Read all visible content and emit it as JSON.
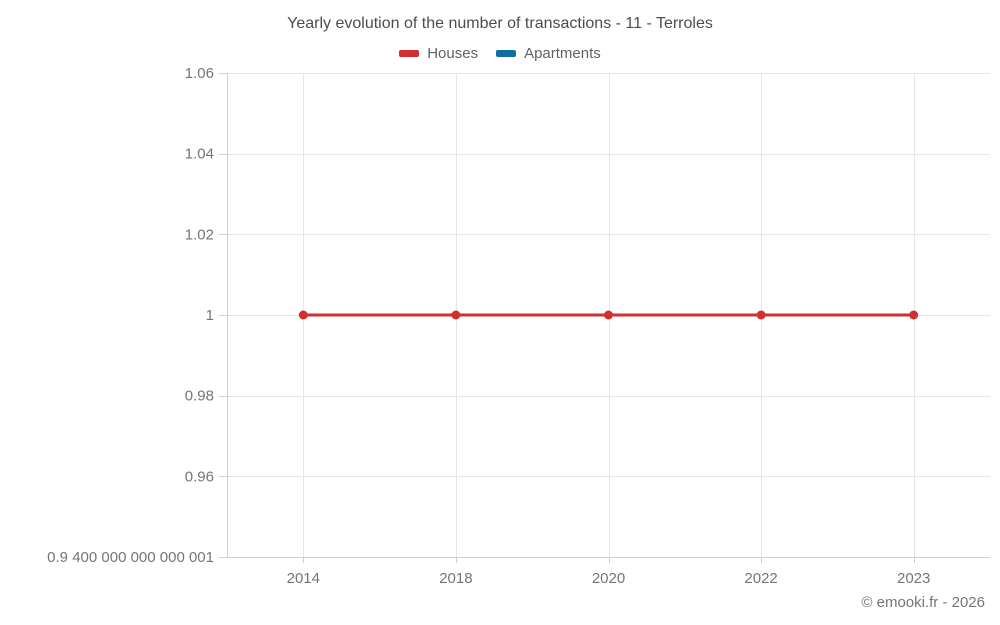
{
  "chart_data": {
    "type": "line",
    "title": "Yearly evolution of the number of transactions - 11 - Terroles",
    "categories": [
      "2014",
      "2018",
      "2020",
      "2022",
      "2023"
    ],
    "series": [
      {
        "name": "Houses",
        "color": "#d32f2f",
        "values": [
          1,
          1,
          1,
          1,
          1
        ]
      },
      {
        "name": "Apartments",
        "color": "#0f6fa3",
        "values": [
          null,
          null,
          null,
          null,
          null
        ]
      }
    ],
    "ylim": [
      0.9400000000000001,
      1.06
    ],
    "y_ticks": [
      1.06,
      1.04,
      1.02,
      1,
      0.98,
      0.96,
      0.9400000000000001
    ],
    "y_tick_labels": [
      "1.06",
      "1.04",
      "1.02",
      "1",
      "0.98",
      "0.96",
      "0.9 400 000 000 000 001"
    ],
    "grid": true,
    "legend_position": "top",
    "line_width": 3,
    "point_radius": 4.5
  },
  "footer": {
    "copyright": "© emooki.fr - 2026"
  },
  "colors": {
    "grid": "#e6e6e6",
    "axis": "#cfcfcf",
    "tick_label": "#757575",
    "title": "#4d4d4d",
    "legend_text": "#5f6368",
    "background": "#ffffff"
  }
}
